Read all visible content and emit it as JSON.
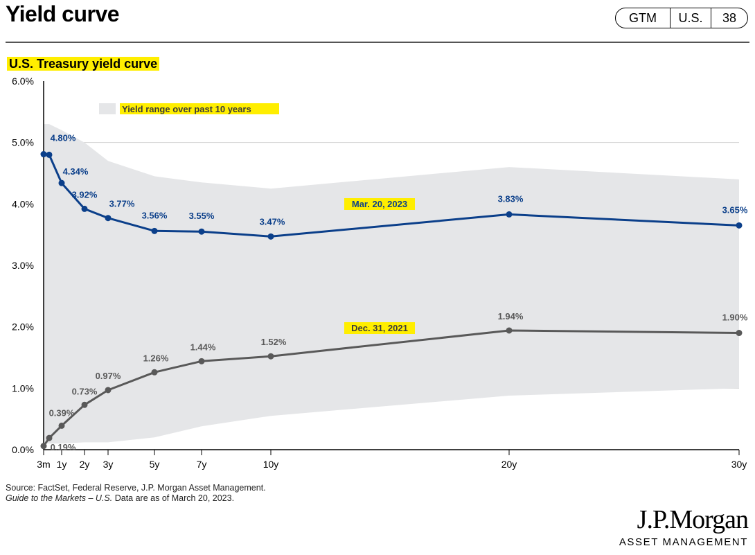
{
  "header": {
    "title": "Yield curve",
    "badge": [
      "GTM",
      "U.S.",
      "38"
    ]
  },
  "chart_title": "U.S. Treasury yield curve",
  "chart_data": {
    "type": "line",
    "title": "U.S. Treasury yield curve",
    "xlabel": "",
    "ylabel": "",
    "ylim": [
      0,
      6
    ],
    "yticks": [
      "0.0%",
      "1.0%",
      "2.0%",
      "3.0%",
      "4.0%",
      "5.0%",
      "6.0%"
    ],
    "x_years": [
      0.25,
      0.5,
      1,
      2,
      3,
      5,
      7,
      10,
      20,
      30
    ],
    "xtick_labels": [
      "3m",
      "1y",
      "2y",
      "3y",
      "5y",
      "7y",
      "10y",
      "20y",
      "30y"
    ],
    "xtick_years": [
      0.25,
      1,
      2,
      3,
      5,
      7,
      10,
      20,
      30
    ],
    "series": [
      {
        "name": "Mar. 20, 2023",
        "color": "#0b3f8a",
        "values": [
          4.81,
          4.8,
          4.34,
          3.92,
          3.77,
          3.56,
          3.55,
          3.47,
          3.83,
          3.65
        ],
        "labels": [
          "",
          "4.80%",
          "4.34%",
          "3.92%",
          "3.77%",
          "3.56%",
          "3.55%",
          "3.47%",
          "3.83%",
          "3.65%"
        ]
      },
      {
        "name": "Dec. 31, 2021",
        "color": "#595959",
        "values": [
          0.06,
          0.19,
          0.39,
          0.73,
          0.97,
          1.26,
          1.44,
          1.52,
          1.94,
          1.9
        ],
        "labels": [
          "",
          "0.19%",
          "0.39%",
          "0.73%",
          "0.97%",
          "1.26%",
          "1.44%",
          "1.52%",
          "1.94%",
          "1.90%"
        ]
      }
    ],
    "range_band": {
      "name": "Yield range over past 10 years",
      "color": "#e5e6e8",
      "x_years": [
        0.25,
        0.5,
        1,
        2,
        3,
        5,
        7,
        10,
        20,
        30
      ],
      "high": [
        5.3,
        5.3,
        5.2,
        5.0,
        4.7,
        4.45,
        4.35,
        4.25,
        4.6,
        4.4
      ],
      "low": [
        0.1,
        0.1,
        0.1,
        0.12,
        0.12,
        0.2,
        0.38,
        0.55,
        0.88,
        1.0
      ]
    }
  },
  "footer": {
    "source_line": "Source: FactSet, Federal Reserve, J.P. Morgan Asset Management.",
    "guide_italic": "Guide to the Markets – U.S.",
    "guide_rest": " Data are as of March 20, 2023.",
    "logo_name": "J.P.Morgan",
    "logo_sub": "ASSET MANAGEMENT"
  }
}
